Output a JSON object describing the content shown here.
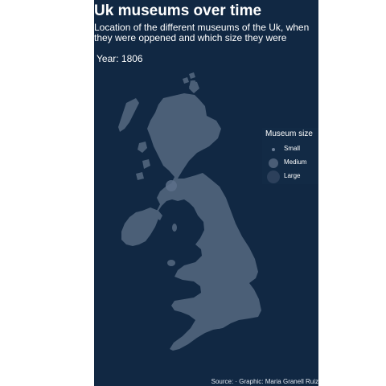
{
  "title": "Uk museums over time",
  "subtitle": "Location of the different museums of the Uk, when they were oppened and which size they were",
  "year_label": "Year: 1806",
  "legend": {
    "title": "Museum size",
    "items": [
      {
        "label": "Small"
      },
      {
        "label": "Medium"
      },
      {
        "label": "Large"
      }
    ]
  },
  "caption": "Source: · Graphic: Maria Granell Ruiz",
  "colors": {
    "background": "#112843",
    "land": "#4b5f77",
    "point": "#5d708a"
  }
}
